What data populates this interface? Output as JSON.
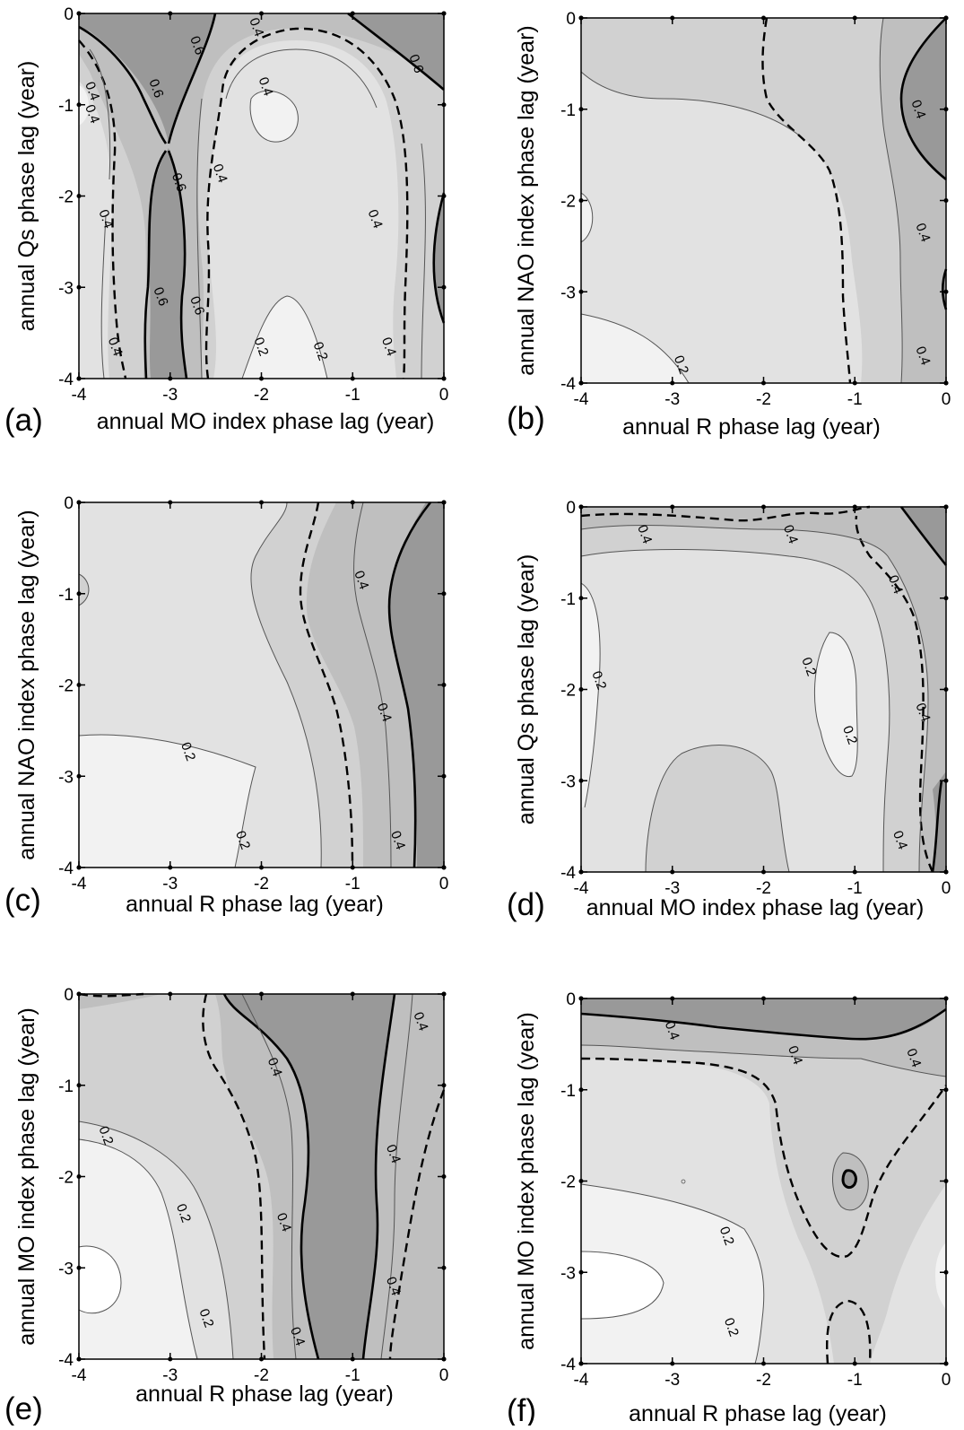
{
  "figure": {
    "colors": {
      "background": "#ffffff",
      "shade_levels": [
        "#f2f2f2",
        "#e2e2e2",
        "#d1d1d1",
        "#bfbfbf",
        "#999999"
      ],
      "contour_line": "#000000"
    }
  },
  "chart_data": [
    {
      "type": "heatmap",
      "panel_label": "(a)",
      "xlabel": "annual MO index phase lag (year)",
      "ylabel": "annual Qs phase lag (year)",
      "xlim": [
        -4,
        0
      ],
      "ylim": [
        -4,
        0
      ],
      "xticks": [
        "-4",
        "-3",
        "-2",
        "-1",
        "0"
      ],
      "yticks": [
        "-4",
        "-3",
        "-2",
        "-1",
        "0"
      ],
      "contour_labels": [
        "0.6",
        "0.4",
        "0.6",
        "0.4",
        "0.6",
        "0.4",
        "0.4",
        "0.4",
        "0.6",
        "0.4",
        "0.4",
        "0.6",
        "0.6",
        "0.2",
        "0.2",
        "0.4",
        "0.4"
      ],
      "contour_label_positions": [
        [
          -2.7,
          -0.35
        ],
        [
          -2.05,
          -0.15
        ],
        [
          -0.3,
          -0.55
        ],
        [
          -1.95,
          -0.8
        ],
        [
          -3.15,
          -0.82
        ],
        [
          -3.85,
          -0.85
        ],
        [
          -3.85,
          -1.1
        ],
        [
          -2.45,
          -1.75
        ],
        [
          -2.9,
          -1.85
        ],
        [
          -3.7,
          -2.25
        ],
        [
          -0.75,
          -2.25
        ],
        [
          -3.1,
          -3.1
        ],
        [
          -2.7,
          -3.2
        ],
        [
          -2.0,
          -3.65
        ],
        [
          -1.35,
          -3.7
        ],
        [
          -3.6,
          -3.65
        ],
        [
          -0.6,
          -3.65
        ]
      ]
    },
    {
      "type": "heatmap",
      "panel_label": "(b)",
      "xlabel": "annual R phase lag (year)",
      "ylabel": "annual NAO index phase lag (year)",
      "xlim": [
        -4,
        0
      ],
      "ylim": [
        -4,
        0
      ],
      "xticks": [
        "-4",
        "-3",
        "-2",
        "-1",
        "0"
      ],
      "yticks": [
        "-4",
        "-3",
        "-2",
        "-1",
        "0"
      ],
      "contour_labels": [
        "0.4",
        "0.4",
        "0.4",
        "0.2"
      ],
      "contour_label_positions": [
        [
          -0.3,
          -1.0
        ],
        [
          -0.25,
          -2.35
        ],
        [
          -0.25,
          -3.7
        ],
        [
          -2.9,
          -3.8
        ]
      ]
    },
    {
      "type": "heatmap",
      "panel_label": "(c)",
      "xlabel": "annual R phase lag (year)",
      "ylabel": "annual NAO index phase lag (year)",
      "xlim": [
        -4,
        0
      ],
      "ylim": [
        -4,
        0
      ],
      "xticks": [
        "-4",
        "-3",
        "-2",
        "-1",
        "0"
      ],
      "yticks": [
        "-4",
        "-3",
        "-2",
        "-1",
        "0"
      ],
      "contour_labels": [
        "0.4",
        "0.4",
        "0.4",
        "0.2",
        "0.2"
      ],
      "contour_label_positions": [
        [
          -0.9,
          -0.85
        ],
        [
          -0.65,
          -2.3
        ],
        [
          -0.5,
          -3.7
        ],
        [
          -2.8,
          -2.73
        ],
        [
          -2.2,
          -3.7
        ]
      ]
    },
    {
      "type": "heatmap",
      "panel_label": "(d)",
      "xlabel": "annual MO index phase lag (year)",
      "ylabel": "annual Qs phase lag (year)",
      "xlim": [
        -4,
        0
      ],
      "ylim": [
        -4,
        0
      ],
      "xticks": [
        "-4",
        "-3",
        "-2",
        "-1",
        "0"
      ],
      "yticks": [
        "-4",
        "-3",
        "-2",
        "-1",
        "0"
      ],
      "contour_labels": [
        "0.4",
        "0.4",
        "0.4",
        "0.2",
        "0.2",
        "0.2",
        "0.4",
        "0.4"
      ],
      "contour_label_positions": [
        [
          -3.3,
          -0.3
        ],
        [
          -1.7,
          -0.3
        ],
        [
          -0.55,
          -0.85
        ],
        [
          -3.8,
          -1.9
        ],
        [
          -1.5,
          -1.75
        ],
        [
          -1.05,
          -2.5
        ],
        [
          -0.25,
          -2.25
        ],
        [
          -0.5,
          -3.65
        ]
      ]
    },
    {
      "type": "heatmap",
      "panel_label": "(e)",
      "xlabel": "annual R phase lag (year)",
      "ylabel": "annual MO index phase lag (year)",
      "xlim": [
        -4,
        0
      ],
      "ylim": [
        -4,
        0
      ],
      "xticks": [
        "-4",
        "-3",
        "-2",
        "-1",
        "0"
      ],
      "yticks": [
        "-4",
        "-3",
        "-2",
        "-1",
        "0"
      ],
      "contour_labels": [
        "0.4",
        "0.4",
        "0.2",
        "0.4",
        "0.2",
        "0.4",
        "0.4",
        "0.2",
        "0.4"
      ],
      "contour_label_positions": [
        [
          -0.25,
          -0.3
        ],
        [
          -1.85,
          -0.8
        ],
        [
          -3.7,
          -1.55
        ],
        [
          -0.55,
          -1.75
        ],
        [
          -2.85,
          -2.4
        ],
        [
          -1.75,
          -2.5
        ],
        [
          -0.55,
          -3.2
        ],
        [
          -2.6,
          -3.55
        ],
        [
          -1.6,
          -3.75
        ]
      ]
    },
    {
      "type": "heatmap",
      "panel_label": "(f)",
      "xlabel": "annual R phase lag (year)",
      "ylabel": "annual MO index phase lag (year)",
      "xlim": [
        -4,
        0
      ],
      "ylim": [
        -4,
        0
      ],
      "xticks": [
        "-4",
        "-3",
        "-2",
        "-1",
        "0"
      ],
      "yticks": [
        "-4",
        "-3",
        "-2",
        "-1",
        "0"
      ],
      "contour_labels": [
        "0.4",
        "0.4",
        "0.4",
        "0.2",
        "0.2"
      ],
      "contour_label_positions": [
        [
          -3.0,
          -0.35
        ],
        [
          -1.65,
          -0.62
        ],
        [
          -0.35,
          -0.65
        ],
        [
          -2.4,
          -2.6
        ],
        [
          -2.35,
          -3.6
        ]
      ]
    }
  ]
}
